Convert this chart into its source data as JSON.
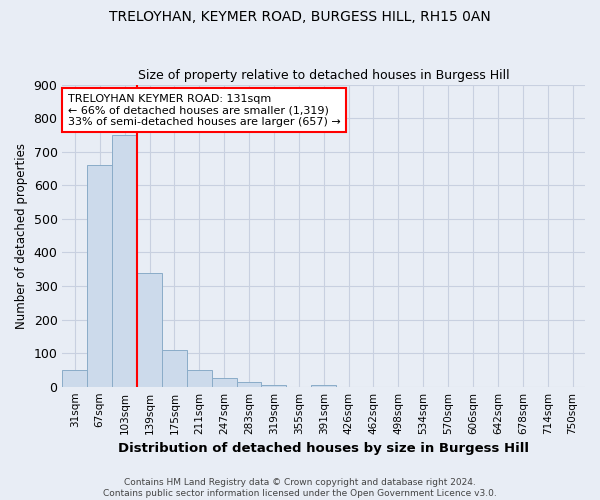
{
  "title_line1": "TRELOYHAN, KEYMER ROAD, BURGESS HILL, RH15 0AN",
  "title_line2": "Size of property relative to detached houses in Burgess Hill",
  "xlabel": "Distribution of detached houses by size in Burgess Hill",
  "ylabel": "Number of detached properties",
  "footnote": "Contains HM Land Registry data © Crown copyright and database right 2024.\nContains public sector information licensed under the Open Government Licence v3.0.",
  "bar_labels": [
    "31sqm",
    "67sqm",
    "103sqm",
    "139sqm",
    "175sqm",
    "211sqm",
    "247sqm",
    "283sqm",
    "319sqm",
    "355sqm",
    "391sqm",
    "426sqm",
    "462sqm",
    "498sqm",
    "534sqm",
    "570sqm",
    "606sqm",
    "642sqm",
    "678sqm",
    "714sqm",
    "750sqm"
  ],
  "bar_values": [
    50,
    660,
    750,
    340,
    110,
    50,
    27,
    15,
    5,
    0,
    5,
    0,
    0,
    0,
    0,
    0,
    0,
    0,
    0,
    0,
    0
  ],
  "bar_color": "#ccdaeb",
  "bar_edge_color": "#8aacc8",
  "ylim": [
    0,
    900
  ],
  "yticks": [
    0,
    100,
    200,
    300,
    400,
    500,
    600,
    700,
    800,
    900
  ],
  "vline_x_index": 3,
  "vline_color": "red",
  "annotation_text": "TRELOYHAN KEYMER ROAD: 131sqm\n← 66% of detached houses are smaller (1,319)\n33% of semi-detached houses are larger (657) →",
  "annotation_box_color": "white",
  "annotation_box_edge": "red",
  "grid_color": "#c8d0e0",
  "background_color": "#e8edf5",
  "title1_fontsize": 11,
  "title2_fontsize": 9
}
